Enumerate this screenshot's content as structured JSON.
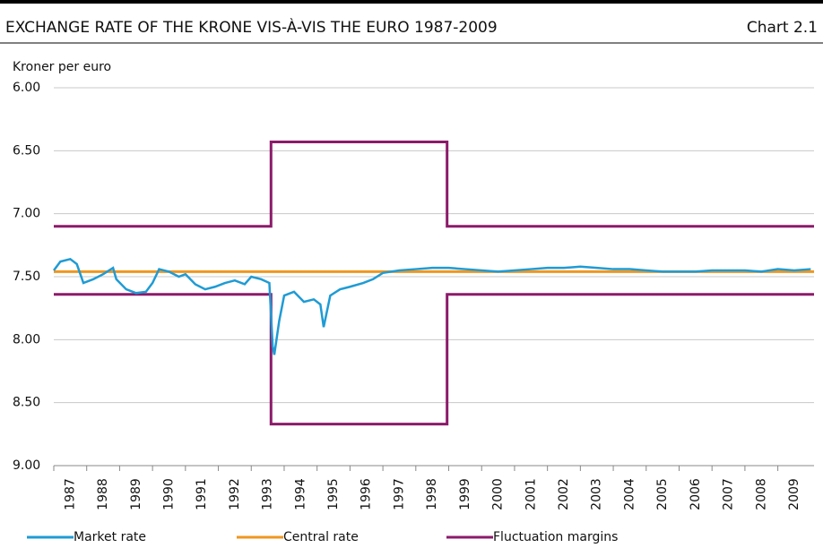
{
  "chart_data": {
    "type": "line",
    "title": "EXCHANGE RATE OF THE KRONE VIS-À-VIS THE EURO 1987-2009",
    "chart_label": "Chart 2.1",
    "y_label": "Kroner per euro",
    "y_inverted": true,
    "grid": true,
    "legend": "bottom",
    "xlim": [
      1987,
      2010.1
    ],
    "xticks": [
      1987,
      1988,
      1989,
      1990,
      1991,
      1992,
      1993,
      1994,
      1995,
      1996,
      1997,
      1998,
      1999,
      2000,
      2001,
      2002,
      2003,
      2004,
      2005,
      2006,
      2007,
      2008,
      2009
    ],
    "ylim": [
      6,
      9
    ],
    "yticks": [
      {
        "value": 6,
        "label": "6.00"
      },
      {
        "value": 6.5,
        "label": "6.50"
      },
      {
        "value": 7,
        "label": "7.00"
      },
      {
        "value": 7.5,
        "label": "7.50"
      },
      {
        "value": 8,
        "label": "8.00"
      },
      {
        "value": 8.5,
        "label": "8.50"
      },
      {
        "value": 9,
        "label": "9.00"
      }
    ],
    "series": [
      {
        "name": "Market rate",
        "color": "#1f9bd4",
        "x": [
          1987.0,
          1987.2,
          1987.5,
          1987.7,
          1987.9,
          1988.2,
          1988.5,
          1988.8,
          1988.9,
          1989.2,
          1989.5,
          1989.8,
          1990.0,
          1990.2,
          1990.5,
          1990.8,
          1991.0,
          1991.3,
          1991.6,
          1991.9,
          1992.2,
          1992.5,
          1992.8,
          1993.0,
          1993.3,
          1993.55,
          1993.65,
          1993.7,
          1993.85,
          1994.0,
          1994.3,
          1994.6,
          1994.9,
          1995.1,
          1995.2,
          1995.4,
          1995.7,
          1996.0,
          1996.4,
          1996.7,
          1997.0,
          1997.5,
          1998.0,
          1998.5,
          1999.0,
          1999.5,
          2000.0,
          2000.5,
          2001.0,
          2001.5,
          2002.0,
          2002.5,
          2003.0,
          2003.5,
          2004.0,
          2004.5,
          2005.0,
          2005.5,
          2006.0,
          2006.5,
          2007.0,
          2007.5,
          2008.0,
          2008.5,
          2009.0,
          2009.5,
          2010.0
        ],
        "values": [
          7.45,
          7.38,
          7.36,
          7.4,
          7.55,
          7.52,
          7.48,
          7.43,
          7.52,
          7.6,
          7.63,
          7.62,
          7.55,
          7.44,
          7.46,
          7.5,
          7.48,
          7.56,
          7.6,
          7.58,
          7.55,
          7.53,
          7.56,
          7.5,
          7.52,
          7.55,
          8.05,
          8.12,
          7.85,
          7.65,
          7.62,
          7.7,
          7.68,
          7.72,
          7.9,
          7.65,
          7.6,
          7.58,
          7.55,
          7.52,
          7.47,
          7.45,
          7.44,
          7.43,
          7.43,
          7.44,
          7.45,
          7.46,
          7.45,
          7.44,
          7.43,
          7.43,
          7.42,
          7.43,
          7.44,
          7.44,
          7.45,
          7.46,
          7.46,
          7.46,
          7.45,
          7.45,
          7.45,
          7.46,
          7.44,
          7.45,
          7.44
        ]
      },
      {
        "name": "Central rate",
        "color": "#f0961e",
        "x": [
          1987.0,
          2010.1
        ],
        "values": [
          7.46,
          7.46
        ]
      },
      {
        "name": "Fluctuation margins",
        "color": "#8c1a6a",
        "x": [
          1987.0,
          1993.6,
          1993.6,
          1998.95,
          1998.95,
          2010.1
        ],
        "values": [
          7.1,
          7.1,
          6.43,
          6.43,
          7.1,
          7.1
        ]
      },
      {
        "name": null,
        "color": "#8c1a6a",
        "x": [
          1987.0,
          1993.6,
          1993.6,
          1998.95,
          1998.95,
          2010.1
        ],
        "values": [
          7.64,
          7.64,
          8.67,
          8.67,
          7.64,
          7.64
        ]
      }
    ]
  }
}
